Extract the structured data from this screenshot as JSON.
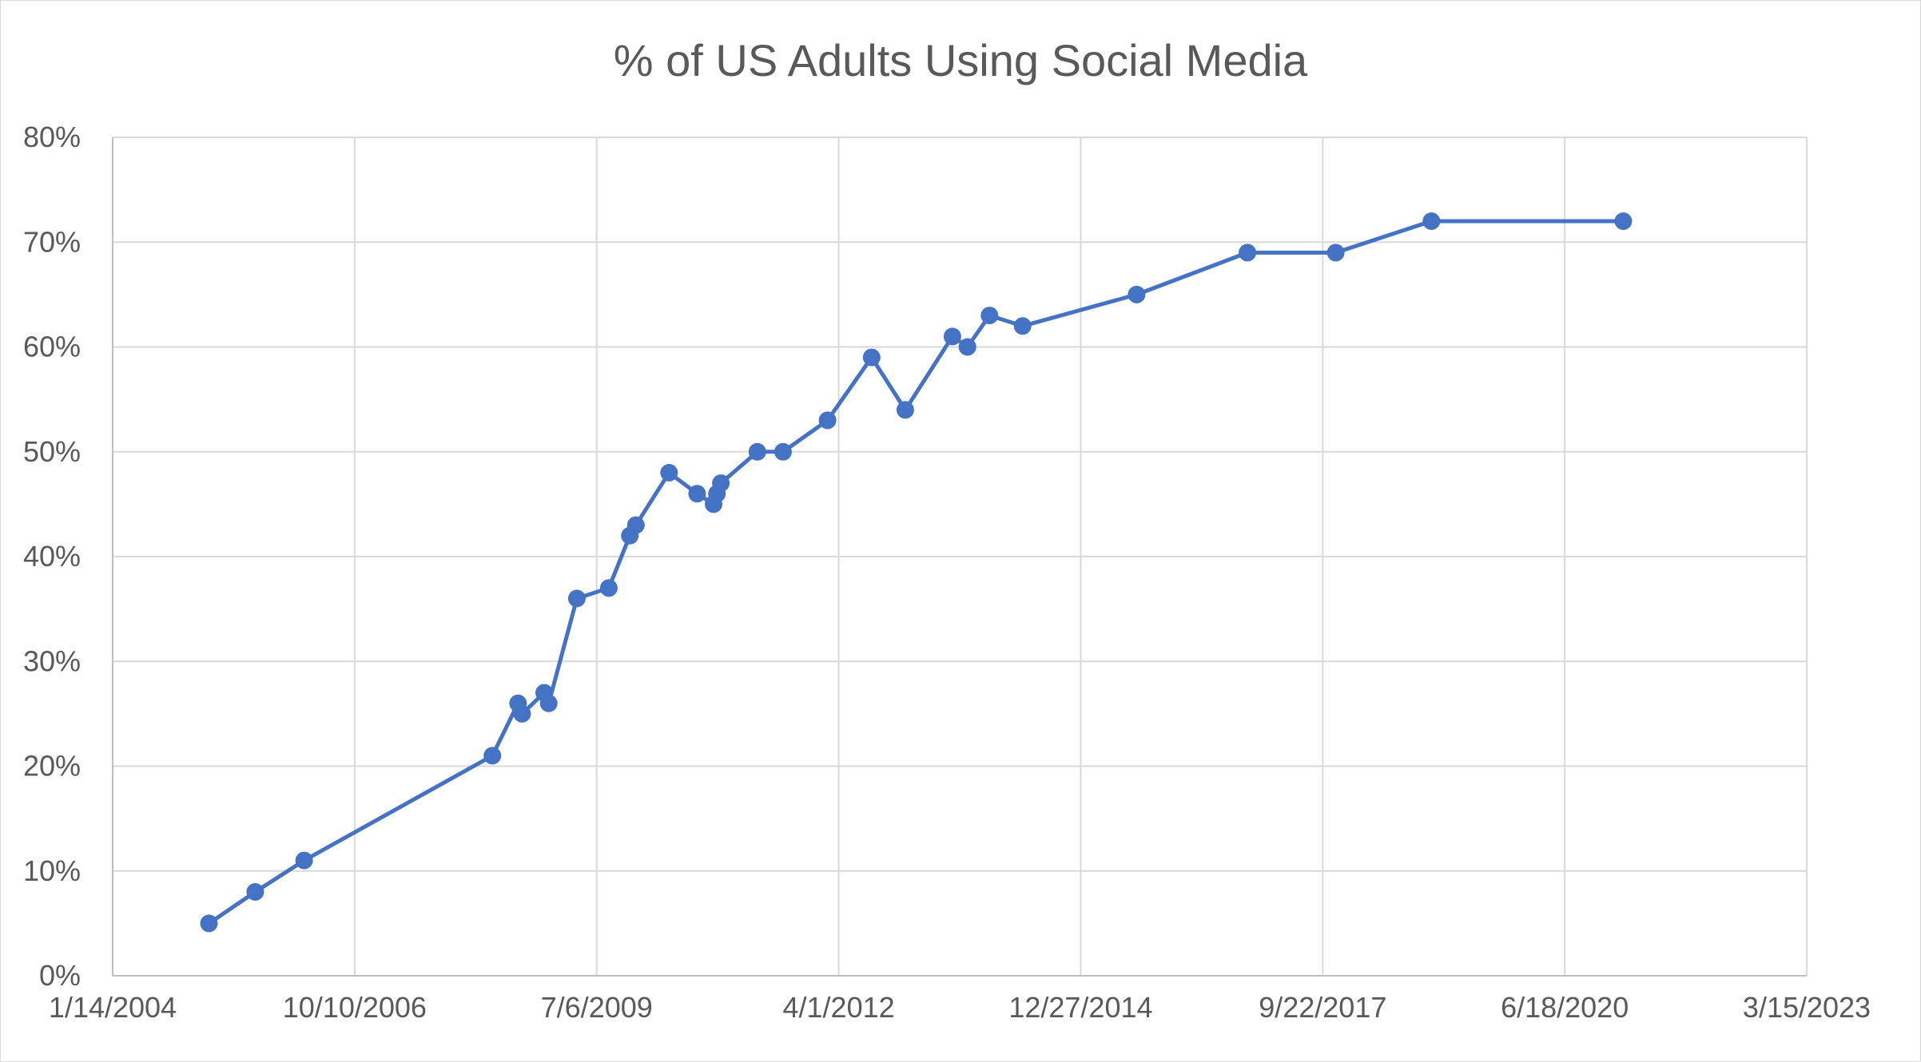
{
  "chart_data": {
    "type": "line",
    "title": "% of US Adults Using Social Media",
    "xlabel": "",
    "ylabel": "",
    "x_axis": {
      "type": "date",
      "min": "2004-01-14",
      "max": "2023-03-15",
      "tick_labels": [
        "1/14/2004",
        "10/10/2006",
        "7/6/2009",
        "4/1/2012",
        "12/27/2014",
        "9/22/2017",
        "6/18/2020",
        "3/15/2023"
      ],
      "tick_dates": [
        "2004-01-14",
        "2006-10-10",
        "2009-07-06",
        "2012-04-01",
        "2014-12-27",
        "2017-09-22",
        "2020-06-18",
        "2023-03-15"
      ]
    },
    "y_axis": {
      "min": 0,
      "max": 0.8,
      "tick_labels": [
        "0%",
        "10%",
        "20%",
        "30%",
        "40%",
        "50%",
        "60%",
        "70%",
        "80%"
      ],
      "tick_values": [
        0,
        0.1,
        0.2,
        0.3,
        0.4,
        0.5,
        0.6,
        0.7,
        0.8
      ]
    },
    "grid": true,
    "legend": "none",
    "series": [
      {
        "color": "#4472c4",
        "points": [
          {
            "x": "2005-02-15",
            "y": 0.05
          },
          {
            "x": "2005-08-25",
            "y": 0.08
          },
          {
            "x": "2006-03-15",
            "y": 0.11
          },
          {
            "x": "2008-05-01",
            "y": 0.21
          },
          {
            "x": "2008-08-15",
            "y": 0.26
          },
          {
            "x": "2008-09-01",
            "y": 0.25
          },
          {
            "x": "2008-12-01",
            "y": 0.27
          },
          {
            "x": "2008-12-20",
            "y": 0.26
          },
          {
            "x": "2009-04-15",
            "y": 0.36
          },
          {
            "x": "2009-08-25",
            "y": 0.37
          },
          {
            "x": "2009-11-20",
            "y": 0.42
          },
          {
            "x": "2009-12-15",
            "y": 0.43
          },
          {
            "x": "2010-05-01",
            "y": 0.48
          },
          {
            "x": "2010-08-25",
            "y": 0.46
          },
          {
            "x": "2010-11-01",
            "y": 0.45
          },
          {
            "x": "2010-11-15",
            "y": 0.46
          },
          {
            "x": "2010-12-01",
            "y": 0.47
          },
          {
            "x": "2011-05-01",
            "y": 0.5
          },
          {
            "x": "2011-08-15",
            "y": 0.5
          },
          {
            "x": "2012-02-15",
            "y": 0.53
          },
          {
            "x": "2012-08-15",
            "y": 0.59
          },
          {
            "x": "2013-01-01",
            "y": 0.54
          },
          {
            "x": "2013-07-15",
            "y": 0.61
          },
          {
            "x": "2013-09-15",
            "y": 0.6
          },
          {
            "x": "2013-12-15",
            "y": 0.63
          },
          {
            "x": "2014-05-01",
            "y": 0.62
          },
          {
            "x": "2015-08-15",
            "y": 0.65
          },
          {
            "x": "2016-11-15",
            "y": 0.69
          },
          {
            "x": "2017-11-15",
            "y": 0.69
          },
          {
            "x": "2018-12-15",
            "y": 0.72
          },
          {
            "x": "2021-02-15",
            "y": 0.72
          }
        ]
      }
    ]
  }
}
